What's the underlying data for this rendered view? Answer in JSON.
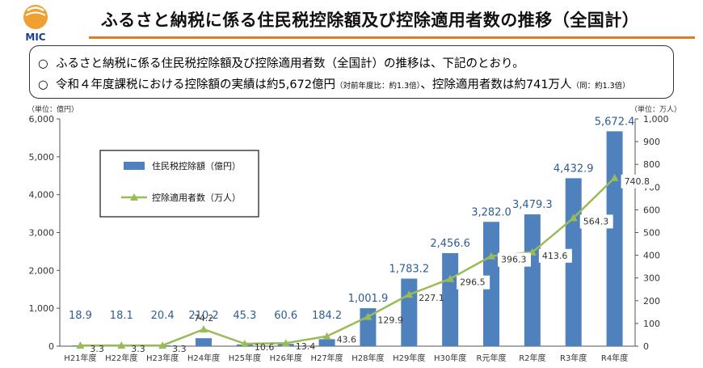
{
  "logo": {
    "text": "MIC",
    "colors": {
      "orange": "#f0a030",
      "text": "#1a3f8f"
    }
  },
  "page": {
    "title": "ふるさと納税に係る住民税控除額及び控除適用者数の推移（全国計）"
  },
  "summary": {
    "line1": {
      "mark": "○",
      "text": "ふるさと納税に係る住民税控除額及び控除適用者数（全国計）の推移は、下記のとおり。"
    },
    "line2": {
      "mark": "○",
      "text_a": "令和４年度課税における控除額の実績は約5,672億円",
      "note_a": "（対前年度比：約1.3倍）",
      "text_b": "、控除適用者数は約741万人",
      "note_b": "（同：約1.3倍）"
    }
  },
  "chart_data": {
    "type": "bar",
    "categories": [
      "H21年度",
      "H22年度",
      "H23年度",
      "H24年度",
      "H25年度",
      "H26年度",
      "H27年度",
      "H28年度",
      "H29年度",
      "H30年度",
      "R元年度",
      "R2年度",
      "R3年度",
      "R4年度"
    ],
    "series": [
      {
        "name": "住民税控除額（億円）",
        "type": "bar",
        "axis": "left",
        "color": "#4f81bd",
        "values": [
          18.9,
          18.1,
          20.4,
          210.2,
          45.3,
          60.6,
          184.2,
          1001.9,
          1783.2,
          2456.6,
          3282.0,
          3479.3,
          4432.9,
          5672.4
        ],
        "labels": [
          "18.9",
          "18.1",
          "20.4",
          "210.2",
          "45.3",
          "60.6",
          "184.2",
          "1,001.9",
          "1,783.2",
          "2,456.6",
          "3,282.0",
          "3,479.3",
          "4,432.9",
          "5,672.4"
        ]
      },
      {
        "name": "控除適用者数（万人）",
        "type": "line",
        "axis": "right",
        "color": "#9bbb59",
        "values": [
          3.3,
          3.3,
          3.3,
          74.2,
          10.6,
          13.4,
          43.6,
          129.9,
          227.1,
          296.5,
          396.3,
          413.6,
          564.3,
          740.8
        ],
        "labels": [
          "3.3",
          "3.3",
          "3.3",
          "74.2",
          "10.6",
          "13.4",
          "43.6",
          "129.9",
          "227.1",
          "296.5",
          "396.3",
          "413.6",
          "564.3",
          "740.8"
        ]
      }
    ],
    "left_axis": {
      "unit": "（単位：億円）",
      "ylim": [
        0,
        6000
      ],
      "ticks": [
        0,
        1000,
        2000,
        3000,
        4000,
        5000,
        6000
      ],
      "tick_labels": [
        "0",
        "1,000",
        "2,000",
        "3,000",
        "4,000",
        "5,000",
        "6,000"
      ]
    },
    "right_axis": {
      "unit": "（単位：万人）",
      "ylim": [
        0,
        1000
      ],
      "ticks": [
        0,
        100,
        200,
        300,
        400,
        500,
        600,
        700,
        800,
        900,
        1000
      ],
      "tick_labels": [
        "0",
        "100",
        "200",
        "300",
        "400",
        "500",
        "600",
        "700",
        "800",
        "900",
        "1,000"
      ]
    },
    "grid": false,
    "legend_placement": "top-left"
  }
}
